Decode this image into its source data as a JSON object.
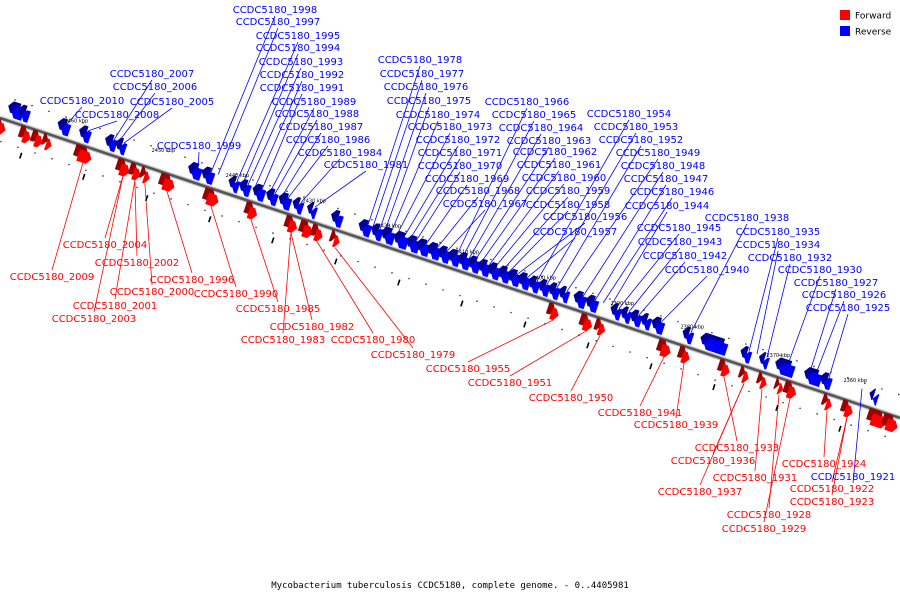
{
  "legend": {
    "forward_label": "Forward",
    "reverse_label": "Reverse",
    "forward_color": "#ff0000",
    "reverse_color": "#0000ff"
  },
  "caption": "Mycobacterium tuberculosis CCDC5180, complete genome. - 0..4405981",
  "kbp_marks": [
    "2460 kbp",
    "2450 kbp",
    "2440 kbp",
    "2430 kbp",
    "2420 kbp",
    "2410 kbp",
    "2400 kbp",
    "2390 kbp",
    "2380 kbp",
    "2370 kbp",
    "2360 kbp"
  ],
  "reverse_labels": [
    "CCDC5180_1998",
    "CCDC5180_1997",
    "CCDC5180_1995",
    "CCDC5180_1994",
    "CCDC5180_1993",
    "CCDC5180_1992",
    "CCDC5180_1991",
    "CCDC5180_1989",
    "CCDC5180_1988",
    "CCDC5180_1987",
    "CCDC5180_1986",
    "CCDC5180_1984",
    "CCDC5180_1981",
    "CCDC5180_2007",
    "CCDC5180_2006",
    "CCDC5180_2010",
    "CCDC5180_2005",
    "CCDC5180_2008",
    "CCDC5180_1999",
    "CCDC5180_1978",
    "CCDC5180_1977",
    "CCDC5180_1976",
    "CCDC5180_1975",
    "CCDC5180_1974",
    "CCDC5180_1973",
    "CCDC5180_1972",
    "CCDC5180_1971",
    "CCDC5180_1970",
    "CCDC5180_1969",
    "CCDC5180_1968",
    "CCDC5180_1967",
    "CCDC5180_1966",
    "CCDC5180_1965",
    "CCDC5180_1964",
    "CCDC5180_1963",
    "CCDC5180_1962",
    "CCDC5180_1961",
    "CCDC5180_1960",
    "CCDC5180_1959",
    "CCDC5180_1958",
    "CCDC5180_1956",
    "CCDC5180_1957",
    "CCDC5180_1954",
    "CCDC5180_1953",
    "CCDC5180_1952",
    "CCDC5180_1949",
    "CCDC5180_1948",
    "CCDC5180_1947",
    "CCDC5180_1946",
    "CCDC5180_1944",
    "CCDC5180_1945",
    "CCDC5180_1943",
    "CCDC5180_1942",
    "CCDC5180_1940",
    "CCDC5180_1938",
    "CCDC5180_1935",
    "CCDC5180_1934",
    "CCDC5180_1932",
    "CCDC5180_1930",
    "CCDC5180_1927",
    "CCDC5180_1926",
    "CCDC5180_1925",
    "CCDC5180_1921"
  ],
  "forward_labels": [
    "CCDC5180_2004",
    "CCDC5180_2009",
    "CCDC5180_2002",
    "CCDC5180_2000",
    "CCDC5180_2001",
    "CCDC5180_2003",
    "CCDC5180_1996",
    "CCDC5180_1990",
    "CCDC5180_1985",
    "CCDC5180_1982",
    "CCDC5180_1983",
    "CCDC5180_1980",
    "CCDC5180_1979",
    "CCDC5180_1955",
    "CCDC5180_1951",
    "CCDC5180_1950",
    "CCDC5180_1941",
    "CCDC5180_1939",
    "CCDC5180_1933",
    "CCDC5180_1936",
    "CCDC5180_1931",
    "CCDC5180_1937",
    "CCDC5180_1928",
    "CCDC5180_1929",
    "CCDC5180_1924",
    "CCDC5180_1922",
    "CCDC5180_1923"
  ]
}
